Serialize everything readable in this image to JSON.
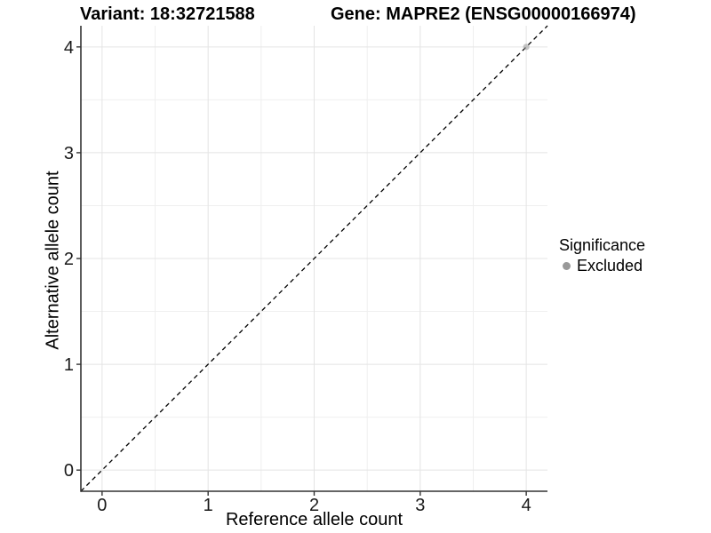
{
  "titles": {
    "variant": "Variant: 18:32721588",
    "gene": "Gene: MAPRE2 (ENSG00000166974)"
  },
  "axes": {
    "x_label": "Reference allele count",
    "y_label": "Alternative allele count"
  },
  "legend": {
    "title": "Significance",
    "items": [
      {
        "label": "Excluded",
        "color": "#999999"
      }
    ]
  },
  "colors": {
    "background": "#FFFFFF",
    "axis_line": "#333333",
    "tick_text": "#1A1A1A",
    "grid_major": "#E4E4E4",
    "grid_minor": "#EFEFEF",
    "reference_line": "#000000",
    "point": "#999999"
  },
  "chart_data": {
    "type": "scatter",
    "title": "Variant: 18:32721588   Gene: MAPRE2 (ENSG00000166974)",
    "xlabel": "Reference allele count",
    "ylabel": "Alternative allele count",
    "xlim": [
      -0.2,
      4.2
    ],
    "ylim": [
      -0.2,
      4.2
    ],
    "x_ticks": [
      0,
      1,
      2,
      3,
      4
    ],
    "y_ticks": [
      0,
      1,
      2,
      3,
      4
    ],
    "minor_grid": [
      0.5,
      1.5,
      2.5,
      3.5
    ],
    "grid": "major+minor",
    "legend_position": "right",
    "reference_line": {
      "type": "identity",
      "slope": 1,
      "intercept": 0,
      "style": "dashed",
      "color": "#000000"
    },
    "series": [
      {
        "name": "Excluded",
        "color": "#999999",
        "opacity": 0.55,
        "points": [
          [
            4,
            4
          ]
        ]
      }
    ]
  }
}
